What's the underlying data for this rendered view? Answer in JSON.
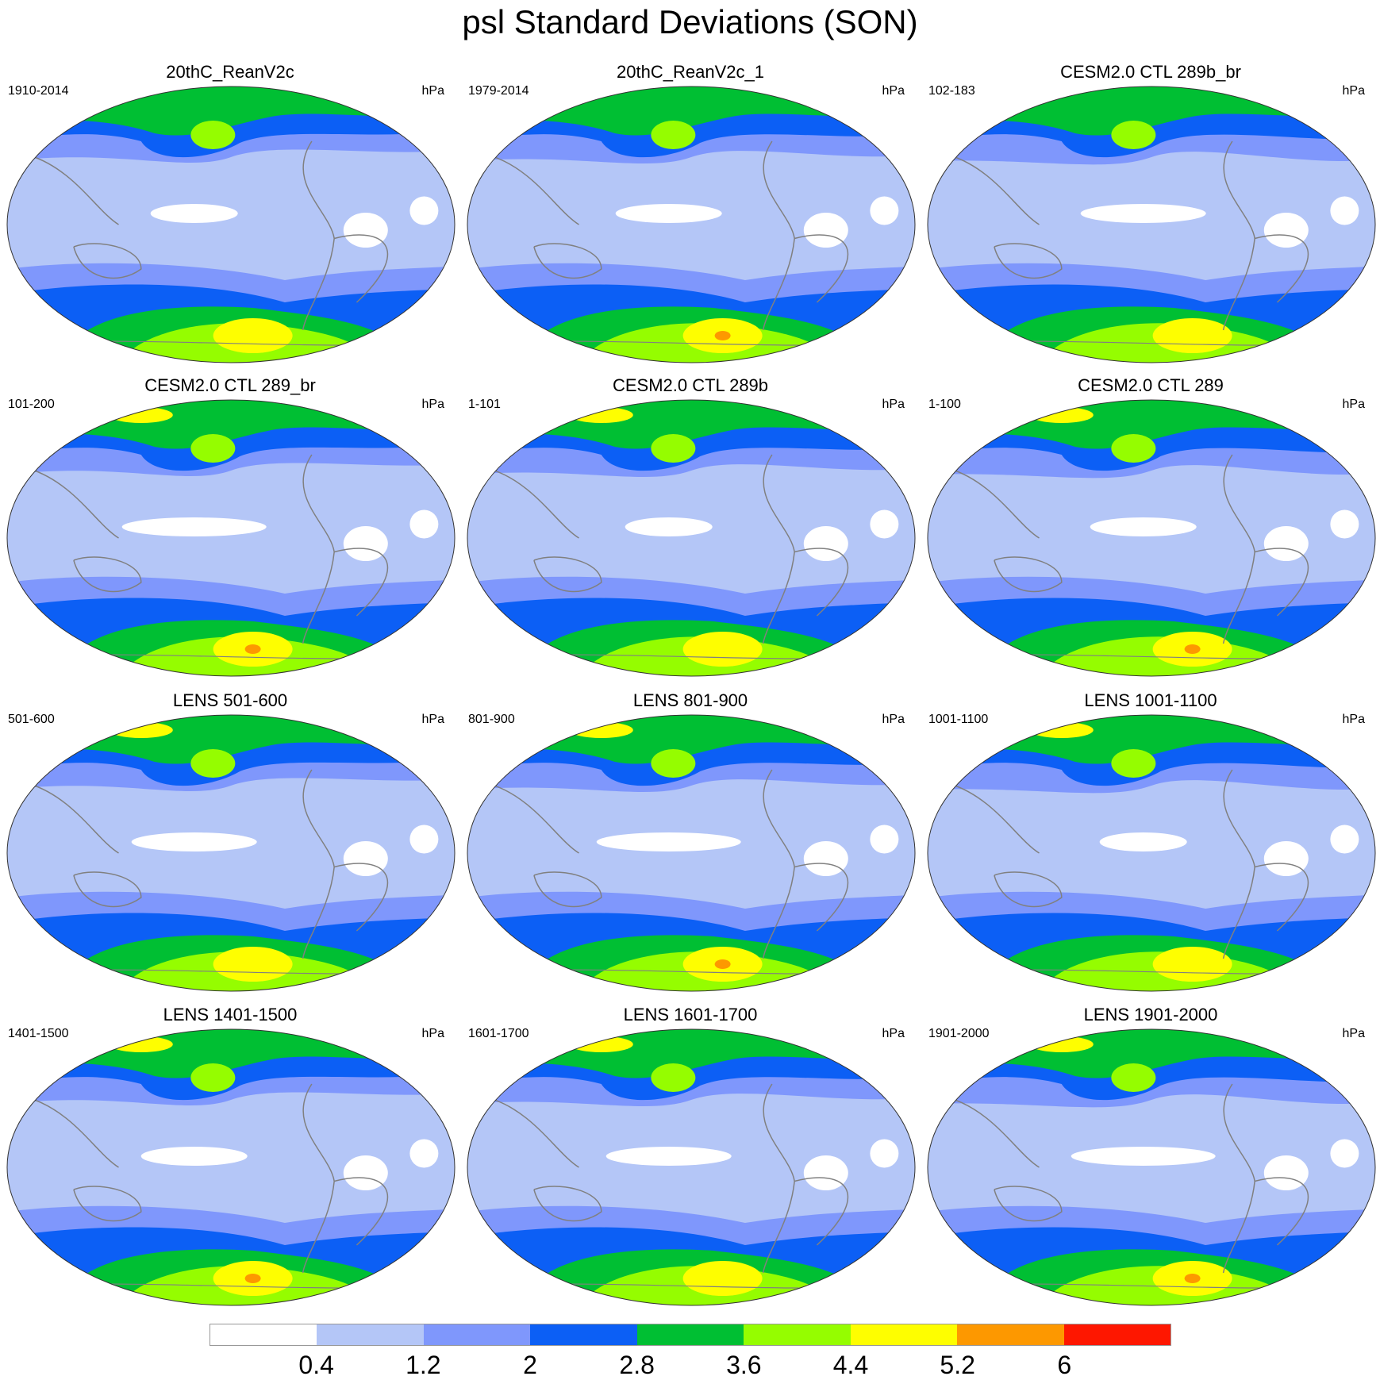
{
  "title": "psl Standard Deviations (SON)",
  "colors": {
    "levels": [
      "#ffffff",
      "#b4c6f7",
      "#7f97fc",
      "#0c5ff5",
      "#00bf33",
      "#95fd00",
      "#fefe00",
      "#fd9800",
      "#fe1700"
    ],
    "coastline": "#808080"
  },
  "colorbar": {
    "labels": [
      "0.4",
      "1.2",
      "2",
      "2.8",
      "3.6",
      "4.4",
      "5.2",
      "6"
    ]
  },
  "panels": [
    {
      "title": "20thC_ReanV2c",
      "years": "1910-2014",
      "units": "hPa"
    },
    {
      "title": "20thC_ReanV2c_1",
      "years": "1979-2014",
      "units": "hPa"
    },
    {
      "title": "CESM2.0 CTL 289b_br",
      "years": "102-183",
      "units": "hPa"
    },
    {
      "title": "CESM2.0 CTL 289_br",
      "years": "101-200",
      "units": "hPa"
    },
    {
      "title": "CESM2.0 CTL 289b",
      "years": "1-101",
      "units": "hPa"
    },
    {
      "title": "CESM2.0 CTL 289",
      "years": "1-100",
      "units": "hPa"
    },
    {
      "title": "LENS 501-600",
      "years": "501-600",
      "units": "hPa"
    },
    {
      "title": "LENS 801-900",
      "years": "801-900",
      "units": "hPa"
    },
    {
      "title": "LENS 1001-1100",
      "years": "1001-1100",
      "units": "hPa"
    },
    {
      "title": "LENS 1401-1500",
      "years": "1401-1500",
      "units": "hPa"
    },
    {
      "title": "LENS 1601-1700",
      "years": "1601-1700",
      "units": "hPa"
    },
    {
      "title": "LENS 1901-2000",
      "years": "1901-2000",
      "units": "hPa"
    }
  ]
}
